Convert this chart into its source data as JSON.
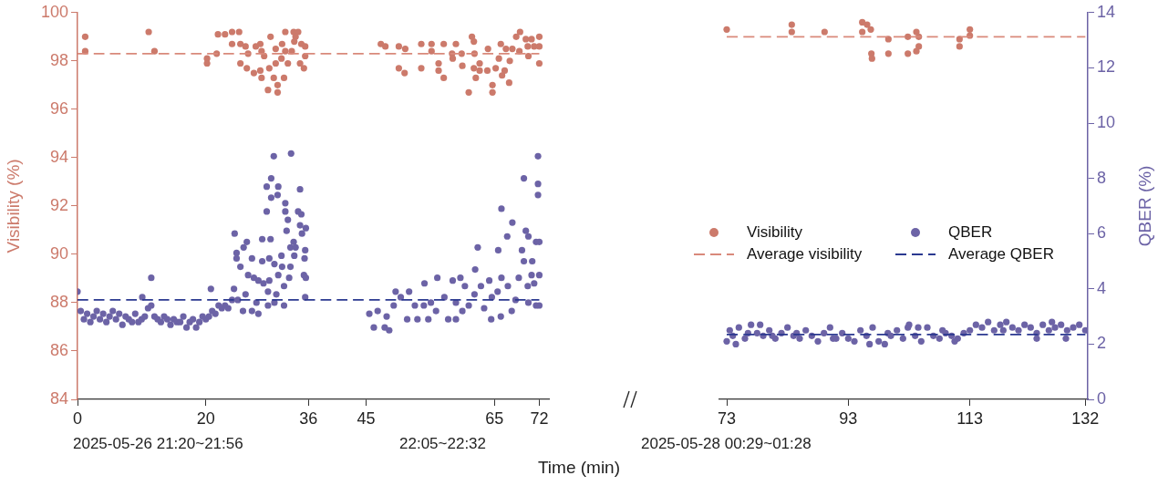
{
  "chart_data": [
    {
      "type": "scatter",
      "ylabel": "Visibility (%)",
      "xlim": [
        0,
        73.5
      ],
      "xticks": [
        0,
        20,
        36,
        45,
        65,
        72
      ],
      "ylim": [
        84,
        100
      ],
      "yticks": [
        84,
        86,
        88,
        90,
        92,
        94,
        96,
        98,
        100
      ],
      "y2lim": [
        0,
        14
      ],
      "tick_labels": [
        "x",
        "y"
      ],
      "grid": false,
      "legend": false,
      "marker": "circle",
      "xlabel": "Time (min)",
      "annotations": [
        "2025-05-26 21:20~21:56",
        "22:05~22:32"
      ],
      "series": [
        {
          "color": "#cc7a6b",
          "x": [
            1.2,
            1.2,
            11.1,
            12,
            20.2,
            20.2,
            21.7,
            21.9,
            23,
            24.1,
            25.2,
            24.1,
            25.4,
            26.2,
            26.6,
            25.4,
            26.4,
            27.5,
            27.8,
            28.5,
            28.7,
            28.5,
            28.7,
            29.1,
            30.1,
            29.9,
            30.6,
            29.7,
            31.2,
            31.2,
            30.9,
            30.9,
            31.9,
            31.8,
            32.2,
            32.4,
            32.8,
            32.4,
            33.7,
            34.4,
            34,
            33.8,
            34.9,
            35.5,
            35.5,
            34.7,
            35.3,
            33.4,
            47.3,
            48,
            50.1,
            51.1,
            50.1,
            51,
            53.6,
            53.6,
            55.2,
            55.2,
            56.3,
            56.3,
            57.1,
            57.1,
            59,
            58.4,
            58.5,
            59.9,
            60,
            61,
            61.5,
            61.8,
            61.9,
            61.8,
            62.7,
            62.1,
            62.7,
            63.9,
            64,
            65.2,
            65.7,
            64.7,
            64.7,
            66,
            66.6,
            66.2,
            67.3,
            67.4,
            66.8,
            67.8,
            68.4,
            69,
            69.9,
            70.2,
            70.8,
            71.2,
            72,
            72,
            72,
            70.3,
            68.9
          ],
          "values": [
            99.0,
            98.4,
            99.2,
            98.4,
            98.1,
            97.9,
            98.3,
            99.1,
            99.1,
            99.2,
            99.2,
            98.7,
            98.7,
            98.6,
            98.3,
            97.9,
            97.7,
            97.5,
            98.6,
            98.7,
            98.4,
            97.6,
            97.3,
            98.2,
            99.0,
            97.7,
            97.3,
            96.8,
            97.0,
            96.7,
            98.5,
            97.9,
            98.7,
            98.1,
            97.3,
            98.4,
            97.9,
            99.2,
            99.2,
            99.2,
            99.0,
            98.8,
            98.7,
            98.6,
            98.2,
            97.9,
            97.7,
            98.4,
            98.7,
            98.6,
            98.6,
            98.5,
            97.7,
            97.5,
            98.7,
            97.7,
            98.7,
            98.4,
            97.9,
            97.6,
            98.7,
            97.3,
            98.7,
            98.3,
            98.1,
            98.3,
            97.8,
            96.7,
            99.0,
            98.8,
            98.3,
            97.7,
            97.9,
            97.3,
            97.6,
            97.6,
            98.5,
            97.7,
            98.1,
            97.0,
            96.7,
            98.7,
            97.6,
            97.4,
            97.1,
            98.0,
            98.5,
            98.5,
            99.0,
            99.2,
            98.9,
            98.6,
            98.9,
            98.6,
            99.0,
            98.6,
            97.9,
            98.2,
            98.4
          ]
        },
        {
          "color": "#6c63a6",
          "axis": "y2",
          "x": [
            0,
            0.5,
            1,
            1.5,
            2,
            2.5,
            3,
            3.5,
            4,
            4.5,
            5,
            5.5,
            6,
            6.5,
            7,
            7.5,
            8,
            8.5,
            9,
            9.5,
            10,
            10.5,
            11,
            11.5,
            12,
            12.5,
            13,
            13.5,
            14,
            14.5,
            15,
            15.5,
            16,
            16.5,
            17,
            17.5,
            18,
            18.5,
            19,
            19.5,
            20,
            20.5,
            21,
            21.5,
            22,
            22.5,
            23,
            11.5,
            10.1,
            20.8,
            24.5,
            24.8,
            24.8,
            24.4,
            25.4,
            26.4,
            25.9,
            27.2,
            26.6,
            27.5,
            26.2,
            25.8,
            27.2,
            28.2,
            27.9,
            28.8,
            29.5,
            29.5,
            30.2,
            30.6,
            30.2,
            31.3,
            31.2,
            30.1,
            28.8,
            29.9,
            30.7,
            29.9,
            31,
            29.7,
            31.3,
            32.4,
            32.4,
            32.8,
            32.6,
            31.8,
            31.9,
            32.2,
            32.2,
            33.3,
            33.2,
            33.7,
            33.8,
            33.2,
            33,
            34.7,
            34.4,
            34.9,
            34.7,
            35.6,
            35,
            35.5,
            35.4,
            35.3,
            35.6,
            35.5,
            34,
            28.2,
            29,
            29.7,
            30.7,
            24.1,
            23.5,
            25,
            45.5,
            46.2,
            46.8,
            47.9,
            48.6,
            48.2,
            49.3,
            49.6,
            50.4,
            51.4,
            51.7,
            52.6,
            53,
            54.1,
            54,
            54.7,
            55.1,
            56.1,
            55.9,
            57.2,
            57.8,
            58.5,
            59,
            59,
            59.7,
            60.4,
            60,
            61,
            62,
            62.4,
            61.9,
            62.9,
            63.4,
            64.5,
            64.6,
            65.6,
            66.1,
            66.1,
            66,
            67,
            67.1,
            67.8,
            67.7,
            68.3,
            69.6,
            69.3,
            69.6,
            69.9,
            70.3,
            70.3,
            70.2,
            70.9,
            70.8,
            71.5,
            71.8,
            71.8,
            71.8,
            72,
            72,
            72,
            71.5,
            71.2,
            68.8,
            65.5,
            64.2
          ],
          "values": [
            3.9,
            3.2,
            2.9,
            3.1,
            2.8,
            3.0,
            3.2,
            2.9,
            3.1,
            2.8,
            3.0,
            3.2,
            2.9,
            3.1,
            2.7,
            3.0,
            2.9,
            2.8,
            3.1,
            2.8,
            2.9,
            3.0,
            3.3,
            3.4,
            3.0,
            2.9,
            2.8,
            3.0,
            2.9,
            2.7,
            2.9,
            2.8,
            2.8,
            3.0,
            2.6,
            2.8,
            2.9,
            2.6,
            2.8,
            3.0,
            2.9,
            3.0,
            3.2,
            3.1,
            3.4,
            3.3,
            3.4,
            4.4,
            3.7,
            4.0,
            6.0,
            5.3,
            5.1,
            4.0,
            4.8,
            5.7,
            5.5,
            5.1,
            4.5,
            4.4,
            3.8,
            3.2,
            3.2,
            3.1,
            3.5,
            5.8,
            6.8,
            7.7,
            7.3,
            8.8,
            8.0,
            7.7,
            7.4,
            5.8,
            5.0,
            5.1,
            4.9,
            4.3,
            3.8,
            3.4,
            4.5,
            7.1,
            6.8,
            6.5,
            6.1,
            5.2,
            4.8,
            4.1,
            3.4,
            8.9,
            5.5,
            5.7,
            5.2,
            4.8,
            4.4,
            7.6,
            6.8,
            6.7,
            6.3,
            6.2,
            6.0,
            5.4,
            5.1,
            4.5,
            4.4,
            3.7,
            5.5,
            4.3,
            4.2,
            3.9,
            3.5,
            3.6,
            3.3,
            3.6,
            3.1,
            2.6,
            3.2,
            2.6,
            2.5,
            3.0,
            3.4,
            3.9,
            3.7,
            2.9,
            3.9,
            3.4,
            2.9,
            4.2,
            3.4,
            2.9,
            3.5,
            4.4,
            3.2,
            3.7,
            2.9,
            4.3,
            2.9,
            3.5,
            4.4,
            4.1,
            3.2,
            3.4,
            4.7,
            5.5,
            3.8,
            4.1,
            3.3,
            2.9,
            3.7,
            5.4,
            6.9,
            4.4,
            3.0,
            5.9,
            4.1,
            6.4,
            3.2,
            3.6,
            8.0,
            5.4,
            5.0,
            6.1,
            5.9,
            3.5,
            4.1,
            5.0,
            4.5,
            5.7,
            8.8,
            7.8,
            7.4,
            4.5,
            5.7,
            3.4,
            3.4,
            4.2,
            4.4,
            3.9,
            4.3
          ]
        },
        {
          "type": "line",
          "color": "#d9897b",
          "x": [
            0,
            72
          ],
          "values": [
            98.3,
            98.3
          ],
          "line_style": "dashed",
          "marker": "none"
        },
        {
          "type": "line",
          "color": "#2b3990",
          "axis": "y2",
          "x": [
            0,
            72
          ],
          "values": [
            3.6,
            3.6
          ],
          "line_style": "dashed",
          "marker": "none"
        }
      ]
    },
    {
      "type": "scatter",
      "y2label": "QBER (%)",
      "xlim": [
        71.8,
        132.4
      ],
      "xticks": [
        73,
        93,
        113,
        132
      ],
      "ylim": [
        84,
        100
      ],
      "y2lim": [
        0,
        14
      ],
      "y2ticks": [
        0,
        2,
        4,
        6,
        8,
        10,
        12,
        14
      ],
      "tick_labels": [
        "x",
        "y2"
      ],
      "grid": false,
      "legend": "center",
      "marker": "circle",
      "annotations": [
        "2025-05-28 00:29~01:28"
      ],
      "series": [
        {
          "name": "Visibility",
          "color": "#cc7a6b",
          "x": [
            73,
            83.7,
            83.7,
            89.1,
            95.3,
            95.3,
            96.1,
            96.7,
            96.8,
            96.9,
            99.6,
            99.6,
            102.8,
            102.8,
            104.2,
            104.6,
            104.6,
            104.2,
            111.3,
            111.3,
            113,
            113
          ],
          "values": [
            99.3,
            99.5,
            99.2,
            99.2,
            99.6,
            99.2,
            99.5,
            99.3,
            98.3,
            98.1,
            98.9,
            98.3,
            99.0,
            98.3,
            99.2,
            99.0,
            98.6,
            98.4,
            98.9,
            98.6,
            99.3,
            99.05
          ]
        },
        {
          "name": "QBER",
          "color": "#6c63a6",
          "axis": "y2",
          "x": [
            73,
            73.5,
            74,
            75,
            76,
            77,
            78,
            79,
            80,
            81,
            82,
            83,
            84,
            85,
            86,
            87,
            88,
            89,
            90,
            91,
            92,
            93,
            94,
            95,
            96,
            97,
            98,
            99,
            100,
            101,
            102,
            103,
            104,
            105,
            106,
            107,
            108,
            109,
            110,
            111,
            112,
            113,
            114,
            115,
            116,
            117,
            118,
            119,
            120,
            121,
            122,
            123,
            124,
            125,
            126,
            127,
            128,
            129,
            130,
            131,
            132,
            124,
            128.8,
            102.8,
            74.5,
            76.5,
            78.5,
            80.5,
            84.5,
            90.5,
            96.5,
            99.5,
            104.5,
            108.5,
            110.5,
            118.5,
            126.5
          ],
          "values": [
            2.1,
            2.5,
            2.3,
            2.6,
            2.2,
            2.7,
            2.4,
            2.3,
            2.5,
            2.2,
            2.4,
            2.6,
            2.3,
            2.2,
            2.5,
            2.3,
            2.1,
            2.4,
            2.6,
            2.2,
            2.4,
            2.2,
            2.1,
            2.5,
            2.3,
            2.6,
            2.1,
            2.0,
            2.3,
            2.5,
            2.2,
            2.7,
            2.3,
            2.1,
            2.6,
            2.3,
            2.2,
            2.4,
            2.3,
            2.2,
            2.4,
            2.5,
            2.7,
            2.6,
            2.8,
            2.5,
            2.7,
            2.8,
            2.6,
            2.5,
            2.7,
            2.6,
            2.4,
            2.7,
            2.5,
            2.6,
            2.7,
            2.5,
            2.6,
            2.7,
            2.5,
            2.2,
            2.2,
            2.6,
            2.0,
            2.4,
            2.7,
            2.3,
            2.4,
            2.2,
            2.0,
            2.4,
            2.6,
            2.5,
            2.1,
            2.5,
            2.8
          ]
        },
        {
          "name": "Average visibility",
          "type": "line",
          "color": "#d9897b",
          "x": [
            73,
            132
          ],
          "values": [
            99.0,
            99.0
          ],
          "line_style": "dashed",
          "marker": "none"
        },
        {
          "name": "Average QBER",
          "type": "line",
          "color": "#2b3990",
          "axis": "y2",
          "x": [
            73,
            132
          ],
          "values": [
            2.35,
            2.35
          ],
          "line_style": "dashed",
          "marker": "none"
        }
      ]
    }
  ]
}
